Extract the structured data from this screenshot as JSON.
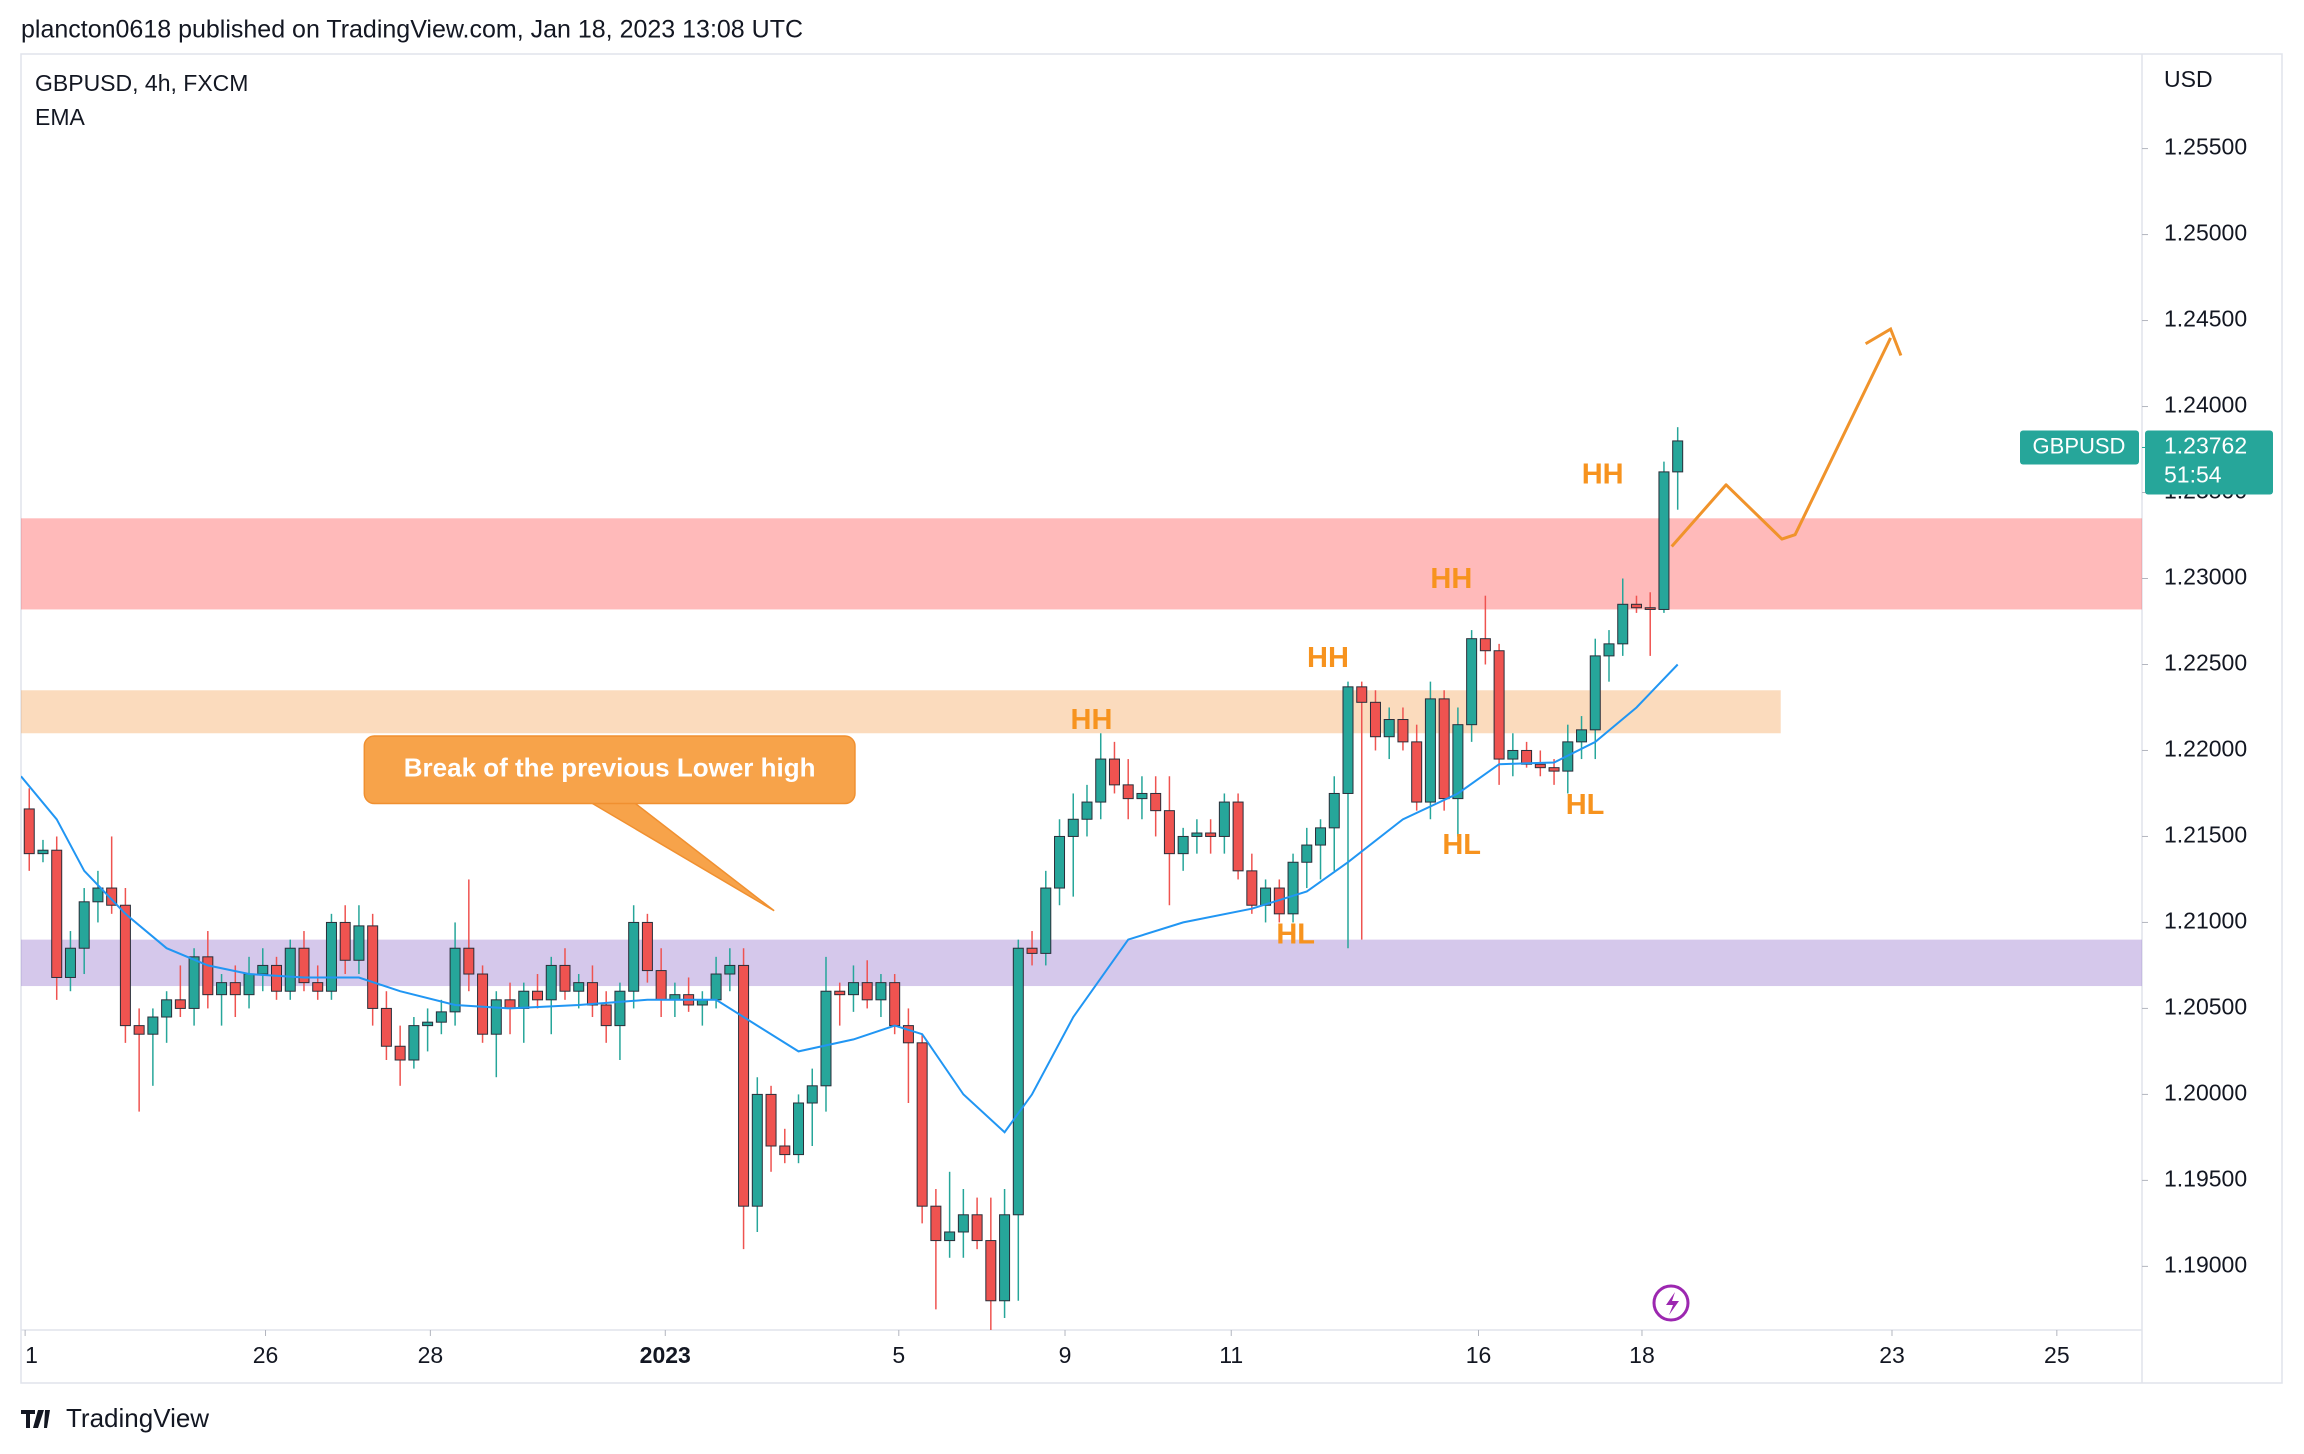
{
  "header": "plancton0618 published on TradingView.com, Jan 18, 2023 13:08 UTC",
  "footer": "TradingView",
  "chart_data": {
    "type": "candlestick",
    "title": "GBPUSD, 4h, FXCM",
    "indicator": "EMA",
    "currency": "USD",
    "up_color": "#26a69a",
    "down_color": "#ef5350",
    "xlim": [
      -0.6,
      153.8
    ],
    "ylim": [
      1.1863,
      1.2605
    ],
    "xticks": [
      {
        "value": -0.3,
        "label": "1"
      },
      {
        "value": 17.2,
        "label": "26"
      },
      {
        "value": 29.2,
        "label": "28"
      },
      {
        "value": 46.3,
        "label": "2023"
      },
      {
        "value": 63.3,
        "label": "5"
      },
      {
        "value": 75.4,
        "label": "9"
      },
      {
        "value": 87.5,
        "label": "11"
      },
      {
        "value": 105.5,
        "label": "16"
      },
      {
        "value": 117.4,
        "label": "18"
      },
      {
        "value": 135.6,
        "label": "23"
      },
      {
        "value": 147.6,
        "label": "25"
      }
    ],
    "yticks": [
      {
        "value": 1.19,
        "label": "1.19000"
      },
      {
        "value": 1.195,
        "label": "1.19500"
      },
      {
        "value": 1.2,
        "label": "1.20000"
      },
      {
        "value": 1.205,
        "label": "1.20500"
      },
      {
        "value": 1.21,
        "label": "1.21000"
      },
      {
        "value": 1.215,
        "label": "1.21500"
      },
      {
        "value": 1.22,
        "label": "1.22000"
      },
      {
        "value": 1.225,
        "label": "1.22500"
      },
      {
        "value": 1.23,
        "label": "1.23000"
      },
      {
        "value": 1.235,
        "label": "1.23500"
      },
      {
        "value": 1.24,
        "label": "1.24000"
      },
      {
        "value": 1.245,
        "label": "1.24500"
      },
      {
        "value": 1.25,
        "label": "1.25000"
      },
      {
        "value": 1.255,
        "label": "1.25500"
      }
    ],
    "ohlc": [
      [
        1.2166,
        1.2178,
        1.213,
        1.214
      ],
      [
        1.214,
        1.2148,
        1.2135,
        1.2142
      ],
      [
        1.2142,
        1.215,
        1.2055,
        1.2068
      ],
      [
        1.2068,
        1.2095,
        1.206,
        1.2085
      ],
      [
        1.2085,
        1.212,
        1.207,
        1.2112
      ],
      [
        1.2112,
        1.213,
        1.21,
        1.212
      ],
      [
        1.212,
        1.215,
        1.2105,
        1.211
      ],
      [
        1.211,
        1.212,
        1.203,
        1.204
      ],
      [
        1.204,
        1.205,
        1.199,
        1.2035
      ],
      [
        1.2035,
        1.205,
        1.2005,
        1.2045
      ],
      [
        1.2045,
        1.206,
        1.203,
        1.2055
      ],
      [
        1.2055,
        1.2075,
        1.2045,
        1.205
      ],
      [
        1.205,
        1.2085,
        1.204,
        1.208
      ],
      [
        1.208,
        1.2095,
        1.205,
        1.2058
      ],
      [
        1.2058,
        1.207,
        1.204,
        1.2065
      ],
      [
        1.2065,
        1.2075,
        1.2045,
        1.2058
      ],
      [
        1.2058,
        1.208,
        1.205,
        1.207
      ],
      [
        1.207,
        1.2085,
        1.206,
        1.2075
      ],
      [
        1.2075,
        1.208,
        1.2055,
        1.206
      ],
      [
        1.206,
        1.209,
        1.2055,
        1.2085
      ],
      [
        1.2085,
        1.2095,
        1.206,
        1.2065
      ],
      [
        1.2065,
        1.2075,
        1.2055,
        1.206
      ],
      [
        1.206,
        1.2105,
        1.2055,
        1.21
      ],
      [
        1.21,
        1.211,
        1.207,
        1.2078
      ],
      [
        1.2078,
        1.211,
        1.207,
        1.2098
      ],
      [
        1.2098,
        1.2105,
        1.204,
        1.205
      ],
      [
        1.205,
        1.206,
        1.202,
        1.2028
      ],
      [
        1.2028,
        1.204,
        1.2005,
        1.202
      ],
      [
        1.202,
        1.2045,
        1.2015,
        1.204
      ],
      [
        1.204,
        1.205,
        1.2025,
        1.2042
      ],
      [
        1.2042,
        1.2055,
        1.2035,
        1.2048
      ],
      [
        1.2048,
        1.21,
        1.204,
        1.2085
      ],
      [
        1.2085,
        1.2125,
        1.206,
        1.207
      ],
      [
        1.207,
        1.2075,
        1.203,
        1.2035
      ],
      [
        1.2035,
        1.206,
        1.201,
        1.2055
      ],
      [
        1.2055,
        1.2065,
        1.2035,
        1.205
      ],
      [
        1.205,
        1.2065,
        1.203,
        1.206
      ],
      [
        1.206,
        1.207,
        1.205,
        1.2055
      ],
      [
        1.2055,
        1.208,
        1.2035,
        1.2075
      ],
      [
        1.2075,
        1.2085,
        1.2055,
        1.206
      ],
      [
        1.206,
        1.207,
        1.205,
        1.2065
      ],
      [
        1.2065,
        1.2075,
        1.2045,
        1.2052
      ],
      [
        1.2052,
        1.206,
        1.203,
        1.204
      ],
      [
        1.204,
        1.2065,
        1.202,
        1.206
      ],
      [
        1.206,
        1.211,
        1.205,
        1.21
      ],
      [
        1.21,
        1.2105,
        1.2065,
        1.2072
      ],
      [
        1.2072,
        1.2085,
        1.2045,
        1.2055
      ],
      [
        1.2055,
        1.2065,
        1.2045,
        1.2058
      ],
      [
        1.2058,
        1.2068,
        1.2048,
        1.2052
      ],
      [
        1.2052,
        1.206,
        1.204,
        1.2055
      ],
      [
        1.2055,
        1.208,
        1.205,
        1.207
      ],
      [
        1.207,
        1.2085,
        1.206,
        1.2075
      ],
      [
        1.2075,
        1.2085,
        1.191,
        1.1935
      ],
      [
        1.1935,
        1.201,
        1.192,
        1.2
      ],
      [
        1.2,
        1.2005,
        1.1955,
        1.197
      ],
      [
        1.197,
        1.198,
        1.196,
        1.1965
      ],
      [
        1.1965,
        1.2,
        1.196,
        1.1995
      ],
      [
        1.1995,
        1.2015,
        1.197,
        1.2005
      ],
      [
        1.2005,
        1.208,
        1.199,
        1.206
      ],
      [
        1.206,
        1.2065,
        1.204,
        1.2058
      ],
      [
        1.2058,
        1.2075,
        1.2048,
        1.2065
      ],
      [
        1.2065,
        1.2078,
        1.205,
        1.2055
      ],
      [
        1.2055,
        1.207,
        1.2045,
        1.2065
      ],
      [
        1.2065,
        1.207,
        1.2035,
        1.204
      ],
      [
        1.204,
        1.205,
        1.1995,
        1.203
      ],
      [
        1.203,
        1.2035,
        1.1925,
        1.1935
      ],
      [
        1.1935,
        1.1945,
        1.1875,
        1.1915
      ],
      [
        1.1915,
        1.1955,
        1.1905,
        1.192
      ],
      [
        1.192,
        1.1945,
        1.1905,
        1.193
      ],
      [
        1.193,
        1.194,
        1.191,
        1.1915
      ],
      [
        1.1915,
        1.194,
        1.1863,
        1.188
      ],
      [
        1.188,
        1.1945,
        1.187,
        1.193
      ],
      [
        1.193,
        1.209,
        1.188,
        1.2085
      ],
      [
        1.2085,
        1.2095,
        1.2075,
        1.2082
      ],
      [
        1.2082,
        1.213,
        1.2075,
        1.212
      ],
      [
        1.212,
        1.216,
        1.211,
        1.215
      ],
      [
        1.215,
        1.2175,
        1.2115,
        1.216
      ],
      [
        1.216,
        1.218,
        1.215,
        1.217
      ],
      [
        1.217,
        1.221,
        1.216,
        1.2195
      ],
      [
        1.2195,
        1.2205,
        1.2175,
        1.218
      ],
      [
        1.218,
        1.2195,
        1.216,
        1.2172
      ],
      [
        1.2172,
        1.2185,
        1.216,
        1.2175
      ],
      [
        1.2175,
        1.2185,
        1.215,
        1.2165
      ],
      [
        1.2165,
        1.2185,
        1.211,
        1.214
      ],
      [
        1.214,
        1.2155,
        1.213,
        1.215
      ],
      [
        1.215,
        1.216,
        1.214,
        1.2152
      ],
      [
        1.2152,
        1.216,
        1.214,
        1.215
      ],
      [
        1.215,
        1.2175,
        1.214,
        1.217
      ],
      [
        1.217,
        1.2175,
        1.2125,
        1.213
      ],
      [
        1.213,
        1.214,
        1.2105,
        1.211
      ],
      [
        1.211,
        1.2125,
        1.21,
        1.212
      ],
      [
        1.212,
        1.2125,
        1.21,
        1.2105
      ],
      [
        1.2105,
        1.214,
        1.21,
        1.2135
      ],
      [
        1.2135,
        1.2155,
        1.212,
        1.2145
      ],
      [
        1.2145,
        1.216,
        1.2125,
        1.2155
      ],
      [
        1.2155,
        1.2185,
        1.213,
        1.2175
      ],
      [
        1.2175,
        1.224,
        1.2085,
        1.2237
      ],
      [
        1.2237,
        1.224,
        1.209,
        1.2228
      ],
      [
        1.2228,
        1.2235,
        1.22,
        1.2208
      ],
      [
        1.2208,
        1.2225,
        1.2195,
        1.2218
      ],
      [
        1.2218,
        1.2225,
        1.22,
        1.2205
      ],
      [
        1.2205,
        1.2215,
        1.2165,
        1.217
      ],
      [
        1.217,
        1.224,
        1.216,
        1.223
      ],
      [
        1.223,
        1.2235,
        1.2165,
        1.2172
      ],
      [
        1.2172,
        1.2225,
        1.215,
        1.2215
      ],
      [
        1.2215,
        1.227,
        1.2205,
        1.2265
      ],
      [
        1.2265,
        1.229,
        1.225,
        1.2258
      ],
      [
        1.2258,
        1.2262,
        1.218,
        1.2195
      ],
      [
        1.2195,
        1.221,
        1.2185,
        1.22
      ],
      [
        1.22,
        1.2205,
        1.219,
        1.2192
      ],
      [
        1.2192,
        1.22,
        1.2185,
        1.219
      ],
      [
        1.219,
        1.2195,
        1.218,
        1.2188
      ],
      [
        1.2188,
        1.2215,
        1.2175,
        1.2205
      ],
      [
        1.2205,
        1.222,
        1.2195,
        1.2212
      ],
      [
        1.2212,
        1.2265,
        1.2195,
        1.2255
      ],
      [
        1.2255,
        1.227,
        1.224,
        1.2262
      ],
      [
        1.2262,
        1.23,
        1.2255,
        1.2285
      ],
      [
        1.2285,
        1.229,
        1.228,
        1.2283
      ],
      [
        1.2283,
        1.2292,
        1.2255,
        1.2282
      ],
      [
        1.2282,
        1.2368,
        1.228,
        1.2362
      ],
      [
        1.2362,
        1.2388,
        1.234,
        1.238
      ]
    ],
    "ema": {
      "color": "#2196f3",
      "x": [
        -0.6,
        2,
        4,
        7,
        10,
        13,
        16,
        20,
        24,
        27,
        31,
        35,
        40,
        45,
        50,
        53,
        56,
        60,
        63,
        65,
        68,
        71,
        73,
        76,
        80,
        84,
        89,
        93,
        96,
        100,
        104,
        107,
        111,
        114,
        117,
        120
      ],
      "values": [
        1.2185,
        1.216,
        1.213,
        1.2105,
        1.2085,
        1.2075,
        1.207,
        1.2068,
        1.2068,
        1.206,
        1.2052,
        1.205,
        1.2052,
        1.2055,
        1.2055,
        1.204,
        1.2025,
        1.2032,
        1.204,
        1.2035,
        1.2,
        1.1978,
        1.2,
        1.2045,
        1.209,
        1.21,
        1.2108,
        1.2118,
        1.2135,
        1.216,
        1.2175,
        1.2192,
        1.2193,
        1.2205,
        1.2225,
        1.225
      ]
    },
    "zones": [
      {
        "from": 1.2282,
        "to": 1.2335,
        "x": [
          -0.6,
          153.8
        ],
        "color": "rgba(255,82,82,0.4)"
      },
      {
        "from": 1.221,
        "to": 1.2235,
        "x": [
          -0.6,
          127.5
        ],
        "color": "rgba(245,166,90,0.4)"
      },
      {
        "from": 1.2063,
        "to": 1.209,
        "x": [
          -0.6,
          153.8
        ],
        "color": "rgba(149,117,205,0.4)"
      }
    ],
    "last_price": {
      "symbol": "GBPUSD",
      "value": 1.23762,
      "countdown": "51:54"
    },
    "annotations": {
      "hh": [
        "HH",
        "HH",
        "HH",
        "HH"
      ],
      "hl": [
        "HL",
        "HL",
        "HL"
      ],
      "callout": "Break of the previous Lower high"
    }
  }
}
